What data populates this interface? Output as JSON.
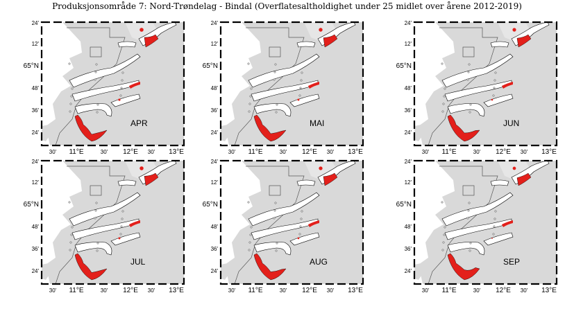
{
  "title": "Produksjonsområde 7: Nord-Trøndelag - Bindal (Overflatesaltholdighet under 25 midlet over årene 2012-2019)",
  "colors": {
    "land": "#d9d9d9",
    "highlight": "#e3201b",
    "coast": "#000000"
  },
  "axes": {
    "lat_ticks": [
      "24'",
      "12'",
      "65°N",
      "48'",
      "36'",
      "24'"
    ],
    "lon_ticks": [
      "30'",
      "11°E",
      "30'",
      "12°E",
      "30'",
      "13°E"
    ]
  },
  "panels": [
    {
      "month": "APR",
      "level": 1.0
    },
    {
      "month": "MAI",
      "level": 0.9
    },
    {
      "month": "JUN",
      "level": 0.8
    },
    {
      "month": "JUL",
      "level": 0.95
    },
    {
      "month": "AUG",
      "level": 0.85
    },
    {
      "month": "SEP",
      "level": 0.55
    }
  ]
}
